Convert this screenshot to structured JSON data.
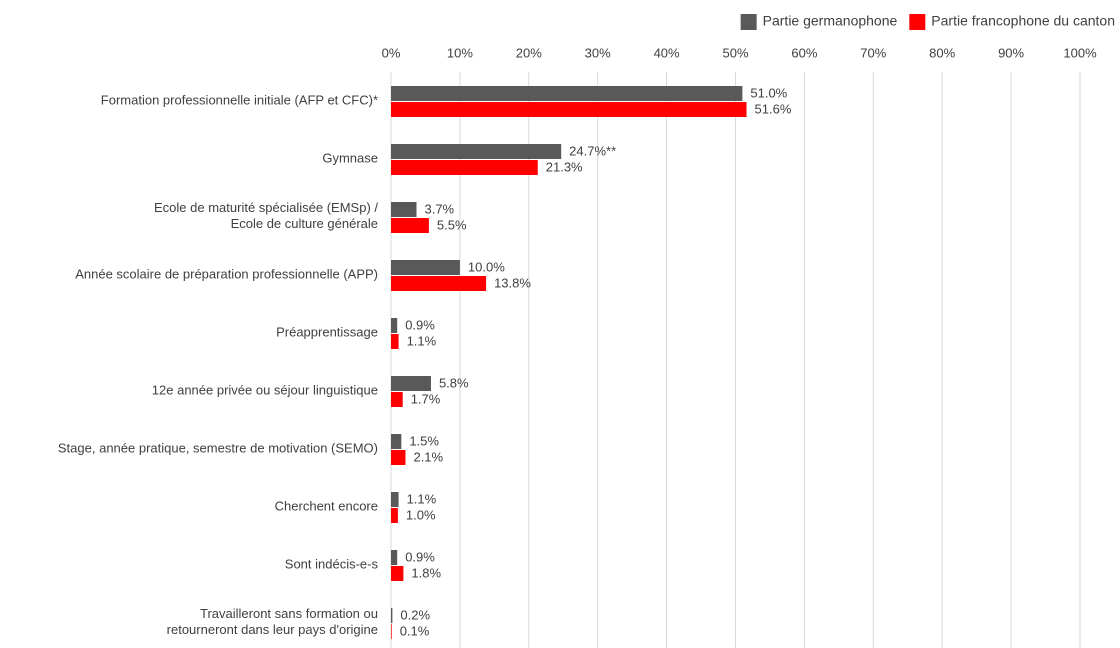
{
  "chart_data": {
    "type": "bar",
    "orientation": "horizontal",
    "categories": [
      "Formation professionnelle initiale (AFP et CFC)*",
      "Gymnase",
      "Ecole de maturité spécialisée (EMSp) /\nEcole de culture générale",
      "Année scolaire de préparation professionnelle (APP)",
      "Préapprentissage",
      "12e année privée ou séjour linguistique",
      "Stage, année pratique, semestre de motivation (SEMO)",
      "Cherchent encore",
      "Sont indécis-e-s",
      "Travailleront sans formation ou\nretourneront dans leur pays d'origine"
    ],
    "series": [
      {
        "name": "Partie germanophone",
        "color": "#595959",
        "values": [
          51.0,
          24.7,
          3.7,
          10.0,
          0.9,
          5.8,
          1.5,
          1.1,
          0.9,
          0.2
        ],
        "value_labels": [
          "51.0%",
          "24.7%**",
          "3.7%",
          "10.0%",
          "0.9%",
          "5.8%",
          "1.5%",
          "1.1%",
          "0.9%",
          "0.2%"
        ]
      },
      {
        "name": "Partie francophone du canton",
        "color": "#ff0000",
        "values": [
          51.6,
          21.3,
          5.5,
          13.8,
          1.1,
          1.7,
          2.1,
          1.0,
          1.8,
          0.1
        ],
        "value_labels": [
          "51.6%",
          "21.3%",
          "5.5%",
          "13.8%",
          "1.1%",
          "1.7%",
          "2.1%",
          "1.0%",
          "1.8%",
          "0.1%"
        ]
      }
    ],
    "xlim": [
      0,
      100
    ],
    "xticks": [
      {
        "value": 0,
        "label": "0%"
      },
      {
        "value": 10,
        "label": "10%"
      },
      {
        "value": 20,
        "label": "20%"
      },
      {
        "value": 30,
        "label": "30%"
      },
      {
        "value": 40,
        "label": "40%"
      },
      {
        "value": 50,
        "label": "50%"
      },
      {
        "value": 60,
        "label": "60%"
      },
      {
        "value": 70,
        "label": "70%"
      },
      {
        "value": 80,
        "label": "80%"
      },
      {
        "value": 90,
        "label": "90%"
      },
      {
        "value": 100,
        "label": "100%"
      }
    ],
    "grid": true,
    "legend": "top-right"
  }
}
